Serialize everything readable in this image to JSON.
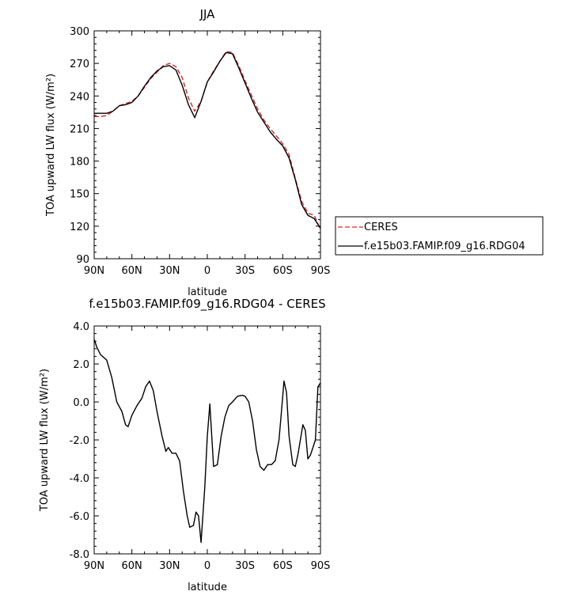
{
  "chart_data": [
    {
      "type": "line",
      "title": "JJA",
      "xlabel": "latitude",
      "ylabel": "TOA upward LW flux (W/m²)",
      "xlim": [
        90,
        -90
      ],
      "ylim": [
        90,
        300
      ],
      "x_ticks": [
        {
          "value": 90,
          "label": "90N"
        },
        {
          "value": 60,
          "label": "60N"
        },
        {
          "value": 30,
          "label": "30N"
        },
        {
          "value": 0,
          "label": "0"
        },
        {
          "value": -30,
          "label": "30S"
        },
        {
          "value": -60,
          "label": "60S"
        },
        {
          "value": -90,
          "label": "90S"
        }
      ],
      "y_ticks": [
        "90",
        "120",
        "150",
        "180",
        "210",
        "240",
        "270",
        "300"
      ],
      "y_tick_values": [
        90,
        120,
        150,
        180,
        210,
        240,
        270,
        300
      ],
      "legend": {
        "placement": "right-outside"
      },
      "series": [
        {
          "name": "CERES",
          "color": "#d62728",
          "dash": "dashed",
          "x": [
            90,
            85,
            80,
            75,
            70,
            65,
            60,
            55,
            50,
            45,
            40,
            35,
            30,
            25,
            20,
            15,
            10,
            5,
            0,
            -5,
            -10,
            -15,
            -20,
            -25,
            -30,
            -35,
            -40,
            -45,
            -50,
            -55,
            -60,
            -65,
            -70,
            -75,
            -80,
            -85,
            -90
          ],
          "values": [
            221,
            221,
            222,
            226,
            231,
            233,
            235,
            240,
            248,
            256,
            262,
            268,
            270,
            267,
            257,
            238,
            226,
            235,
            253,
            263,
            272,
            281,
            280,
            268,
            254,
            241,
            228,
            218,
            210,
            203,
            196,
            186,
            164,
            143,
            132,
            130,
            117
          ]
        },
        {
          "name": "f.e15b03.FAMIP.f09_g16.RDG04",
          "color": "#000000",
          "dash": "solid",
          "x": [
            90,
            85,
            80,
            75,
            70,
            65,
            60,
            55,
            50,
            45,
            40,
            35,
            30,
            25,
            20,
            15,
            10,
            5,
            0,
            -5,
            -10,
            -15,
            -20,
            -25,
            -30,
            -35,
            -40,
            -45,
            -50,
            -55,
            -60,
            -65,
            -70,
            -75,
            -80,
            -85,
            -90
          ],
          "values": [
            224,
            224,
            224,
            226,
            231,
            232,
            234,
            240,
            249,
            257,
            263,
            267,
            268,
            264,
            250,
            232,
            220,
            235,
            253,
            262,
            272,
            280,
            279,
            266,
            252,
            238,
            225,
            216,
            207,
            200,
            194,
            183,
            163,
            140,
            130,
            127,
            118
          ]
        }
      ]
    },
    {
      "type": "line",
      "title": "f.e15b03.FAMIP.f09_g16.RDG04 - CERES",
      "xlabel": "latitude",
      "ylabel": "TOA upward LW flux (W/m²)",
      "xlim": [
        90,
        -90
      ],
      "ylim": [
        -8,
        4
      ],
      "x_ticks": [
        {
          "value": 90,
          "label": "90N"
        },
        {
          "value": 60,
          "label": "60N"
        },
        {
          "value": 30,
          "label": "30N"
        },
        {
          "value": 0,
          "label": "0"
        },
        {
          "value": -30,
          "label": "30S"
        },
        {
          "value": -60,
          "label": "60S"
        },
        {
          "value": -90,
          "label": "90S"
        }
      ],
      "y_ticks": [
        "4.0",
        "2.0",
        "0.0",
        "-2.0",
        "-4.0",
        "-6.0",
        "-8.0"
      ],
      "y_tick_values": [
        4,
        2,
        0,
        -2,
        -4,
        -6,
        -8
      ],
      "series": [
        {
          "color": "#000000",
          "x": [
            90,
            88,
            85,
            80,
            76,
            72,
            68,
            65,
            63,
            60,
            56,
            52,
            49,
            46,
            43,
            40,
            36,
            33,
            31,
            28,
            25,
            22,
            19,
            16,
            14,
            11,
            9,
            7,
            5,
            2,
            0,
            -2,
            -5,
            -8,
            -11,
            -14,
            -17,
            -20,
            -24,
            -28,
            -30,
            -33,
            -36,
            -39,
            -42,
            -45,
            -48,
            -51,
            -54,
            -57,
            -59,
            -61,
            -63,
            -65,
            -68,
            -70,
            -72,
            -74,
            -76,
            -78,
            -80,
            -82,
            -84,
            -86,
            -88,
            -90
          ],
          "values": [
            3.3,
            2.9,
            2.5,
            2.2,
            1.3,
            0.0,
            -0.5,
            -1.2,
            -1.3,
            -0.7,
            -0.2,
            0.2,
            0.8,
            1.1,
            0.6,
            -0.5,
            -1.8,
            -2.6,
            -2.4,
            -2.7,
            -2.7,
            -3.1,
            -4.7,
            -6.0,
            -6.6,
            -6.5,
            -5.8,
            -6.0,
            -7.4,
            -4.5,
            -1.8,
            -0.1,
            -3.4,
            -3.3,
            -1.8,
            -0.8,
            -0.2,
            0.0,
            0.3,
            0.35,
            0.3,
            0.0,
            -1.0,
            -2.5,
            -3.4,
            -3.6,
            -3.3,
            -3.3,
            -3.1,
            -2.0,
            -0.5,
            1.1,
            0.5,
            -1.8,
            -3.3,
            -3.4,
            -2.8,
            -2.0,
            -1.2,
            -1.5,
            -3.0,
            -2.8,
            -2.4,
            -2.0,
            0.8,
            1.0
          ]
        }
      ]
    }
  ]
}
